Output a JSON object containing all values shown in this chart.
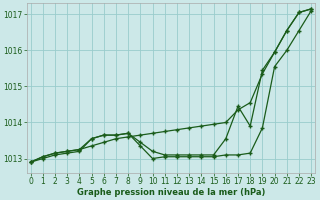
{
  "xlabel": "Graphe pression niveau de la mer (hPa)",
  "ylim": [
    1012.6,
    1017.3
  ],
  "xlim": [
    -0.3,
    23.3
  ],
  "yticks": [
    1013,
    1014,
    1015,
    1016,
    1017
  ],
  "xticks": [
    0,
    1,
    2,
    3,
    4,
    5,
    6,
    7,
    8,
    9,
    10,
    11,
    12,
    13,
    14,
    15,
    16,
    17,
    18,
    19,
    20,
    21,
    22,
    23
  ],
  "background_color": "#cce8e8",
  "grid_color": "#99cccc",
  "line_color": "#1a5c1a",
  "series1_x": [
    0,
    1,
    2,
    3,
    4,
    5,
    6,
    7,
    8,
    9,
    10,
    11,
    12,
    13,
    14,
    15,
    16,
    17,
    18,
    19,
    20,
    21,
    22,
    23
  ],
  "series1_y": [
    1012.9,
    1013.05,
    1013.15,
    1013.2,
    1013.25,
    1013.35,
    1013.45,
    1013.55,
    1013.6,
    1013.65,
    1013.7,
    1013.75,
    1013.8,
    1013.85,
    1013.9,
    1013.95,
    1014.0,
    1014.35,
    1014.55,
    1015.35,
    1015.95,
    1016.55,
    1017.05,
    1017.15
  ],
  "series2_x": [
    0,
    1,
    2,
    3,
    4,
    5,
    6,
    7,
    8,
    9,
    10,
    11,
    12,
    13,
    14,
    15,
    16,
    17,
    18,
    19,
    20,
    21,
    22,
    23
  ],
  "series2_y": [
    1012.9,
    1013.05,
    1013.15,
    1013.2,
    1013.25,
    1013.55,
    1013.65,
    1013.65,
    1013.7,
    1013.35,
    1013.0,
    1013.05,
    1013.05,
    1013.05,
    1013.05,
    1013.05,
    1013.1,
    1013.1,
    1013.15,
    1013.85,
    1015.55,
    1016.0,
    1016.55,
    1017.1
  ],
  "series3_x": [
    0,
    1,
    2,
    3,
    4,
    5,
    6,
    7,
    8,
    9,
    10,
    11,
    12,
    13,
    14,
    15,
    16,
    17,
    18,
    19,
    20,
    21,
    22,
    23
  ],
  "series3_y": [
    1012.9,
    1013.0,
    1013.1,
    1013.15,
    1013.2,
    1013.55,
    1013.65,
    1013.65,
    1013.7,
    1013.45,
    1013.2,
    1013.1,
    1013.1,
    1013.1,
    1013.1,
    1013.1,
    1013.55,
    1014.45,
    1013.9,
    1015.45,
    1015.95,
    1016.55,
    1017.05,
    1017.15
  ],
  "tick_fontsize": 5.5,
  "xlabel_fontsize": 6.0
}
